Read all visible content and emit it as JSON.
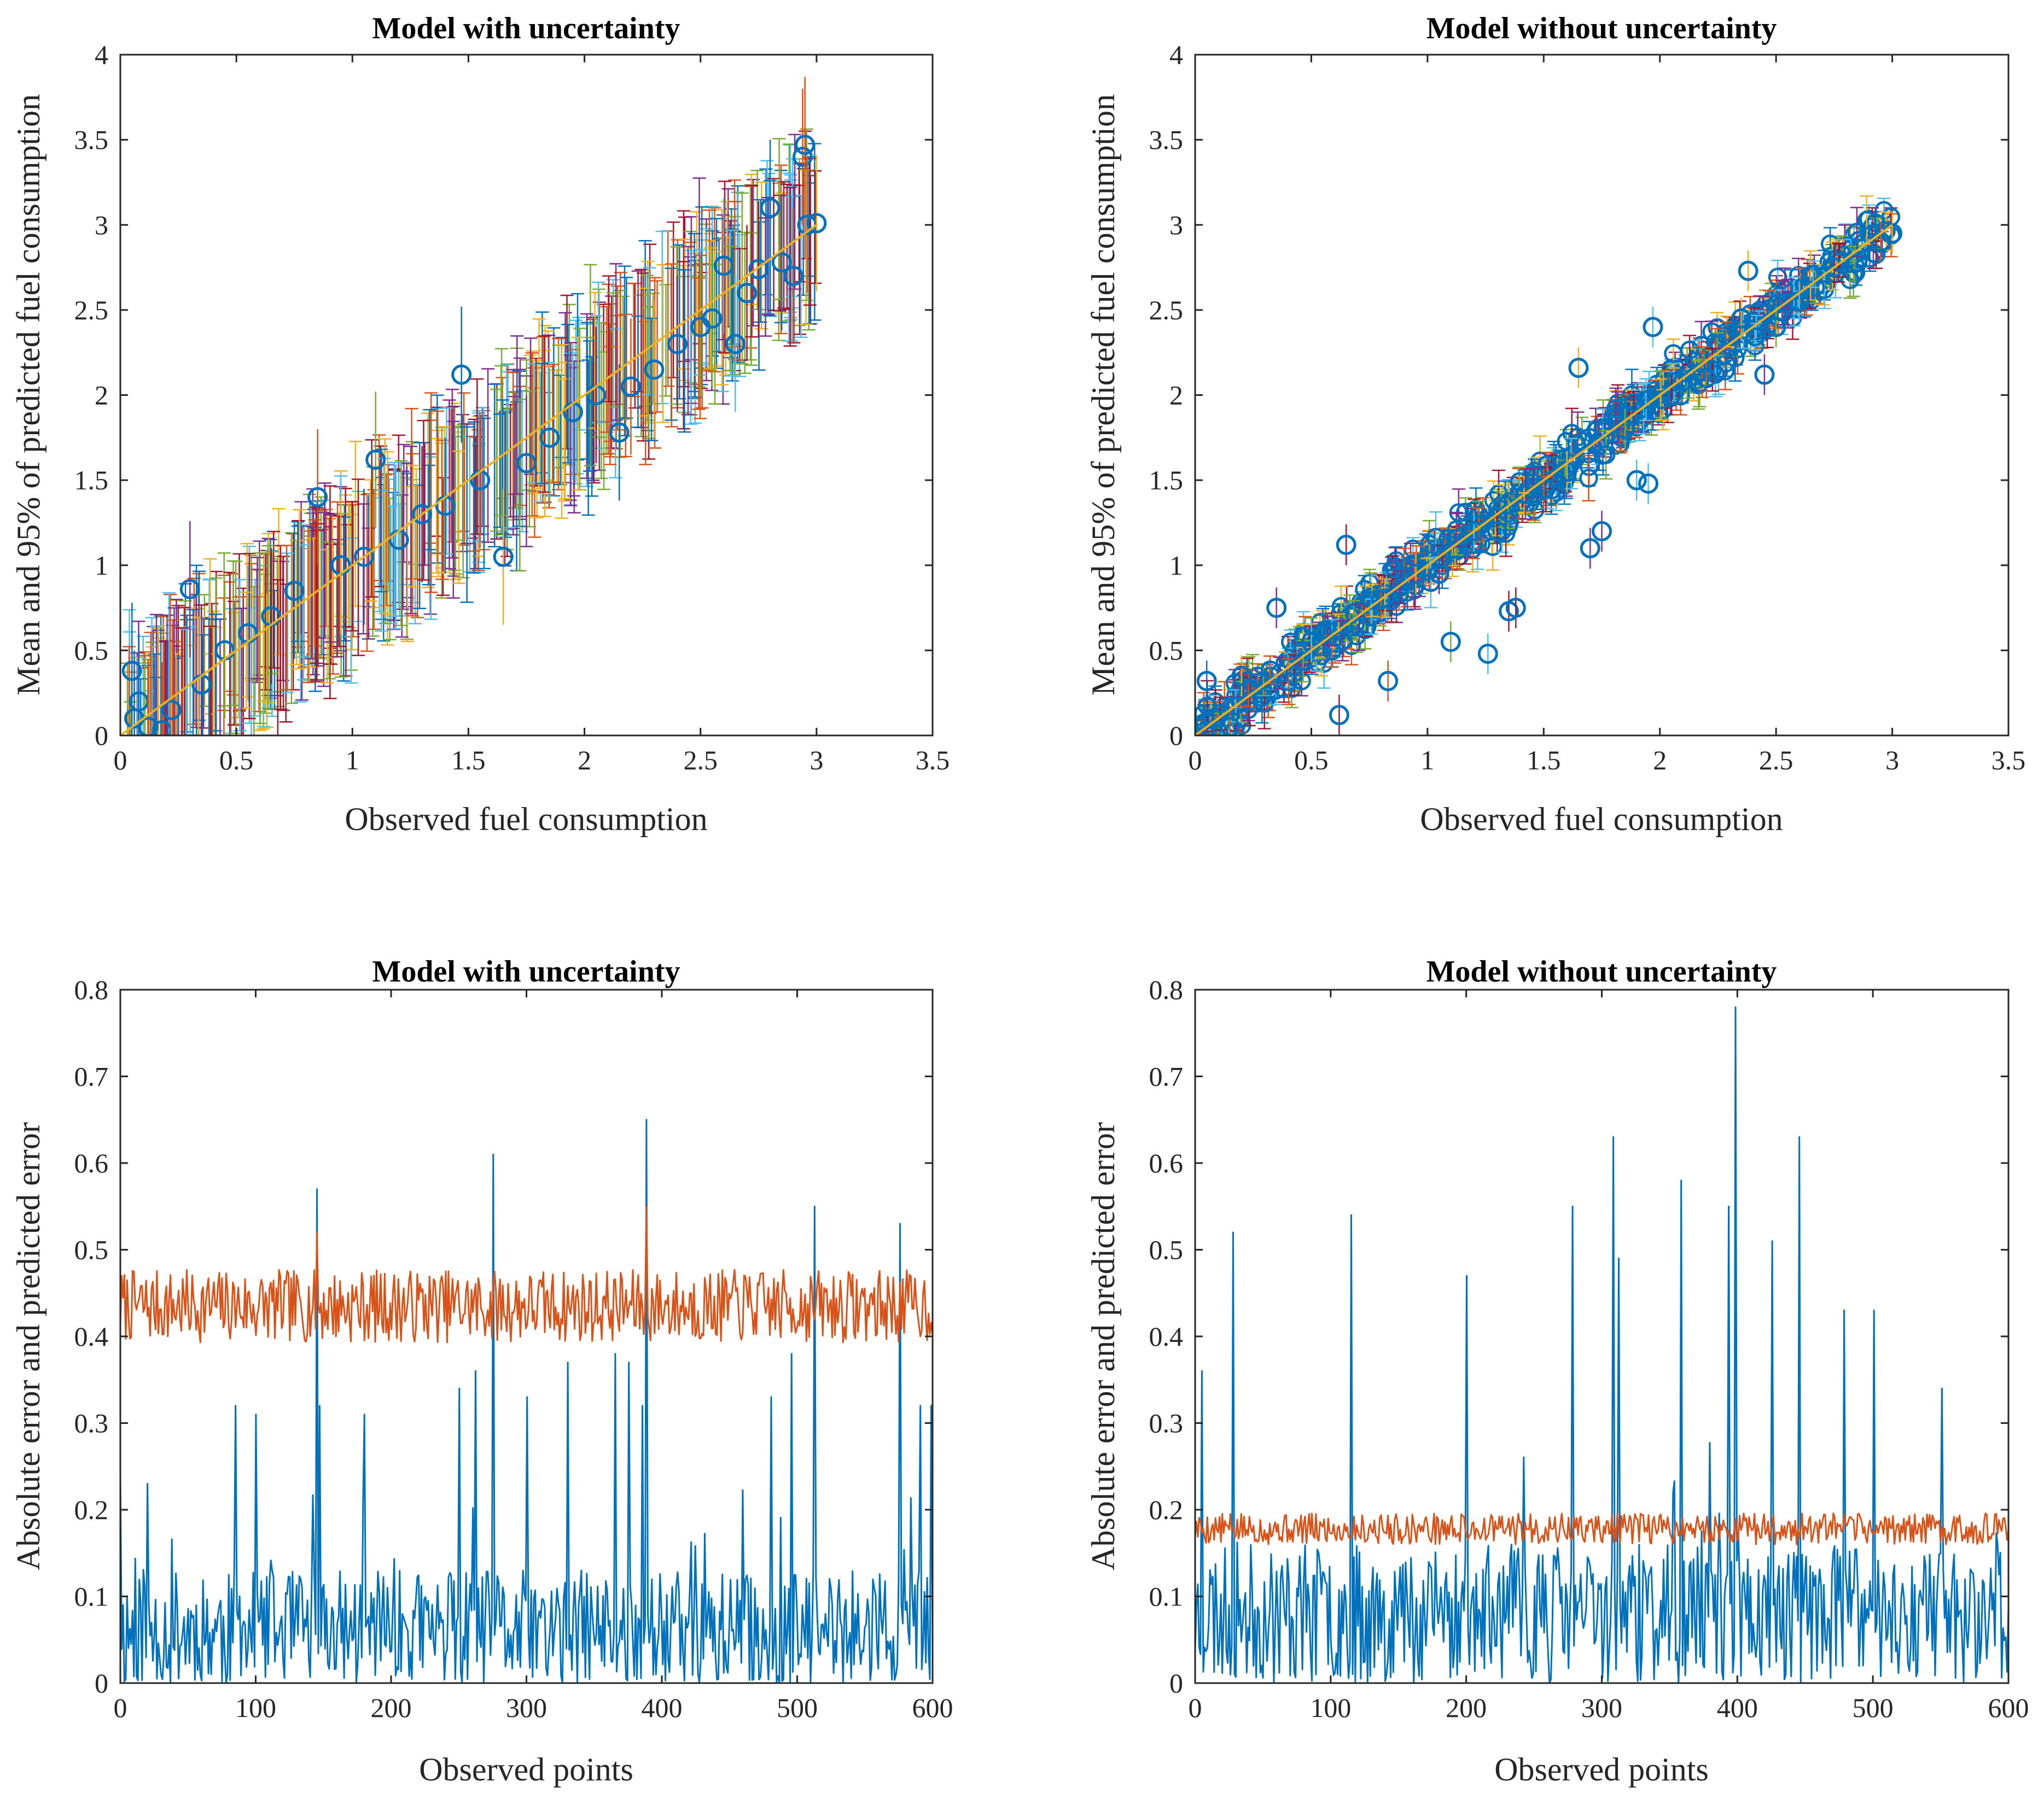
{
  "chart_data": [
    {
      "type": "scatter",
      "title": "Model with uncertainty",
      "xlabel": "Observed fuel consumption",
      "ylabel": "Mean and 95% of predicted fuel consumption",
      "xlim": [
        0,
        3.5
      ],
      "ylim": [
        0,
        4
      ],
      "xticks": [
        "0",
        "0.5",
        "1",
        "1.5",
        "2",
        "2.5",
        "3",
        "3.5"
      ],
      "yticks": [
        "0",
        "0.5",
        "1",
        "1.5",
        "2",
        "2.5",
        "3",
        "3.5",
        "4"
      ],
      "grid": false,
      "legend": "none",
      "marker_color": "#0072BD",
      "errorbar_colors": [
        "#0072BD",
        "#D95319",
        "#EDB120",
        "#7E2F8E",
        "#77AC30",
        "#4DBEEE",
        "#A2142F"
      ],
      "reference_line": {
        "x": [
          0,
          3
        ],
        "y": [
          0,
          3
        ],
        "color": "#EDB120"
      },
      "points": [
        [
          0.05,
          0.38
        ],
        [
          0.06,
          0.1
        ],
        [
          0.08,
          0.2
        ],
        [
          0.12,
          0.05
        ],
        [
          0.18,
          0.03
        ],
        [
          0.22,
          0.15
        ],
        [
          0.3,
          0.86
        ],
        [
          0.35,
          0.3
        ],
        [
          0.45,
          0.5
        ],
        [
          0.55,
          0.6
        ],
        [
          0.65,
          0.7
        ],
        [
          0.75,
          0.85
        ],
        [
          0.85,
          1.4
        ],
        [
          0.95,
          1.0
        ],
        [
          1.05,
          1.05
        ],
        [
          1.1,
          1.62
        ],
        [
          1.2,
          1.15
        ],
        [
          1.3,
          1.3
        ],
        [
          1.4,
          1.35
        ],
        [
          1.47,
          2.12
        ],
        [
          1.55,
          1.5
        ],
        [
          1.65,
          1.05
        ],
        [
          1.75,
          1.6
        ],
        [
          1.85,
          1.75
        ],
        [
          1.95,
          1.9
        ],
        [
          2.05,
          2.0
        ],
        [
          2.15,
          1.78
        ],
        [
          2.2,
          2.05
        ],
        [
          2.3,
          2.15
        ],
        [
          2.4,
          2.3
        ],
        [
          2.5,
          2.4
        ],
        [
          2.55,
          2.45
        ],
        [
          2.6,
          2.76
        ],
        [
          2.65,
          2.3
        ],
        [
          2.7,
          2.6
        ],
        [
          2.75,
          2.74
        ],
        [
          2.8,
          3.1
        ],
        [
          2.85,
          2.78
        ],
        [
          2.9,
          2.7
        ],
        [
          2.94,
          3.4
        ],
        [
          2.95,
          3.47
        ],
        [
          2.96,
          3.0
        ],
        [
          3.0,
          3.01
        ]
      ]
    },
    {
      "type": "scatter",
      "title": "Model without uncertainty",
      "xlabel": "Observed fuel consumption",
      "ylabel": "Mean and 95% of predicted fuel consumption",
      "xlim": [
        0,
        3.5
      ],
      "ylim": [
        0,
        4
      ],
      "xticks": [
        "0",
        "0.5",
        "1",
        "1.5",
        "2",
        "2.5",
        "3",
        "3.5"
      ],
      "yticks": [
        "0",
        "0.5",
        "1",
        "1.5",
        "2",
        "2.5",
        "3",
        "3.5",
        "4"
      ],
      "grid": false,
      "legend": "none",
      "marker_color": "#0072BD",
      "errorbar_colors": [
        "#0072BD",
        "#D95319",
        "#EDB120",
        "#7E2F8E",
        "#77AC30",
        "#4DBEEE",
        "#A2142F"
      ],
      "reference_line": {
        "x": [
          0,
          3
        ],
        "y": [
          0,
          3
        ],
        "color": "#EDB120"
      },
      "points": [
        [
          0.05,
          0.32
        ],
        [
          0.08,
          0.1
        ],
        [
          0.15,
          0.05
        ],
        [
          0.2,
          0.35
        ],
        [
          0.35,
          0.75
        ],
        [
          0.5,
          0.55
        ],
        [
          0.62,
          0.12
        ],
        [
          0.65,
          1.12
        ],
        [
          0.8,
          0.8
        ],
        [
          0.83,
          0.32
        ],
        [
          0.95,
          0.95
        ],
        [
          1.05,
          0.95
        ],
        [
          1.1,
          0.55
        ],
        [
          1.2,
          1.2
        ],
        [
          1.26,
          0.48
        ],
        [
          1.3,
          1.2
        ],
        [
          1.35,
          0.73
        ],
        [
          1.38,
          0.75
        ],
        [
          1.5,
          1.45
        ],
        [
          1.6,
          1.55
        ],
        [
          1.65,
          2.16
        ],
        [
          1.7,
          1.1
        ],
        [
          1.75,
          1.2
        ],
        [
          1.85,
          1.8
        ],
        [
          1.9,
          1.5
        ],
        [
          1.95,
          1.48
        ],
        [
          1.97,
          2.4
        ],
        [
          2.05,
          2.0
        ],
        [
          2.2,
          2.1
        ],
        [
          2.35,
          2.45
        ],
        [
          2.38,
          2.73
        ],
        [
          2.45,
          2.12
        ],
        [
          2.5,
          2.4
        ],
        [
          2.6,
          2.55
        ],
        [
          2.75,
          2.75
        ],
        [
          2.85,
          2.78
        ],
        [
          2.95,
          2.9
        ],
        [
          3.0,
          2.95
        ]
      ]
    },
    {
      "type": "line",
      "title": "Model with uncertainty",
      "xlabel": "Observed points",
      "ylabel": "Absolute error and predicted error",
      "xlim": [
        0,
        600
      ],
      "ylim": [
        0,
        0.8
      ],
      "xticks": [
        "0",
        "100",
        "200",
        "300",
        "400",
        "500",
        "600"
      ],
      "yticks": [
        "0",
        "0.1",
        "0.2",
        "0.3",
        "0.4",
        "0.5",
        "0.6",
        "0.7",
        "0.8"
      ],
      "grid": false,
      "legend": "none",
      "series": [
        {
          "color": "#0072BD",
          "n": 600,
          "base": 0.06,
          "noise": 0.07,
          "seed": 11,
          "spikes": [
            [
              0,
              0.24
            ],
            [
              20,
              0.23
            ],
            [
              85,
              0.32
            ],
            [
              100,
              0.31
            ],
            [
              145,
              0.57
            ],
            [
              147,
              0.32
            ],
            [
              180,
              0.31
            ],
            [
              250,
              0.34
            ],
            [
              262,
              0.36
            ],
            [
              275,
              0.61
            ],
            [
              300,
              0.33
            ],
            [
              330,
              0.37
            ],
            [
              365,
              0.38
            ],
            [
              375,
              0.37
            ],
            [
              385,
              0.32
            ],
            [
              388,
              0.65
            ],
            [
              480,
              0.33
            ],
            [
              495,
              0.38
            ],
            [
              512,
              0.55
            ],
            [
              575,
              0.53
            ],
            [
              590,
              0.32
            ],
            [
              598,
              0.32
            ]
          ]
        },
        {
          "color": "#D95319",
          "n": 600,
          "base": 0.435,
          "noise": 0.042,
          "seed": 7,
          "spikes": [
            [
              145,
              0.52
            ],
            [
              388,
              0.55
            ]
          ]
        }
      ]
    },
    {
      "type": "line",
      "title": "Model without uncertainty",
      "xlabel": "Observed points",
      "ylabel": "Absolute error and predicted error",
      "xlim": [
        0,
        600
      ],
      "ylim": [
        0,
        0.8
      ],
      "xticks": [
        "0",
        "100",
        "200",
        "300",
        "400",
        "500",
        "600"
      ],
      "yticks": [
        "0",
        "0.1",
        "0.2",
        "0.3",
        "0.4",
        "0.5",
        "0.6",
        "0.7",
        "0.8"
      ],
      "grid": false,
      "legend": "none",
      "series": [
        {
          "color": "#0072BD",
          "n": 600,
          "base": 0.08,
          "noise": 0.08,
          "seed": 23,
          "spikes": [
            [
              5,
              0.36
            ],
            [
              28,
              0.52
            ],
            [
              115,
              0.54
            ],
            [
              200,
              0.47
            ],
            [
              278,
              0.55
            ],
            [
              308,
              0.63
            ],
            [
              312,
              0.49
            ],
            [
              358,
              0.58
            ],
            [
              393,
              0.55
            ],
            [
              398,
              0.78
            ],
            [
              425,
              0.51
            ],
            [
              445,
              0.63
            ],
            [
              478,
              0.43
            ],
            [
              500,
              0.43
            ],
            [
              550,
              0.34
            ]
          ]
        },
        {
          "color": "#D95319",
          "n": 600,
          "base": 0.178,
          "noise": 0.018,
          "seed": 5,
          "spikes": []
        }
      ]
    }
  ]
}
